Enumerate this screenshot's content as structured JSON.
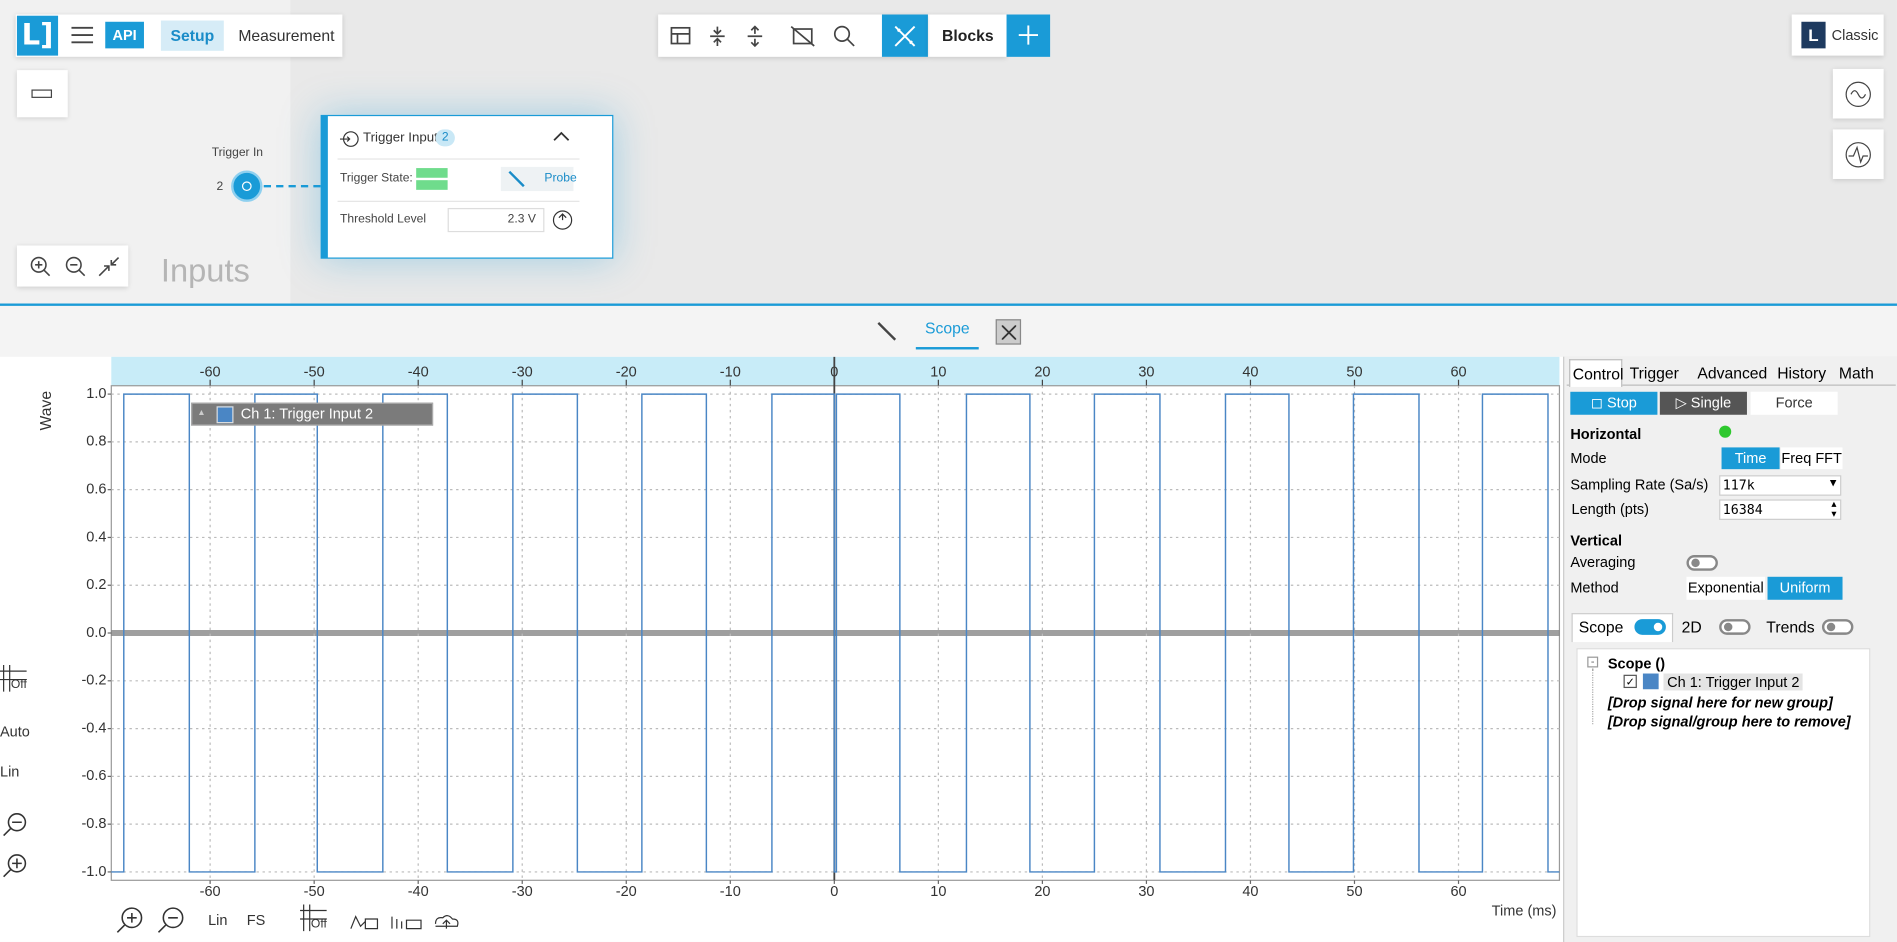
{
  "toolbar": {
    "api": "API",
    "tabs": [
      "Setup",
      "Measurement"
    ],
    "blocks": "Blocks",
    "classic": "Classic"
  },
  "canvas": {
    "section": "Inputs",
    "trigger_in": {
      "label": "Trigger In",
      "number": "2"
    },
    "block": {
      "title": "Trigger Input",
      "badge": "2",
      "trigger_state": "Trigger State:",
      "probe": "Probe",
      "threshold_label": "Threshold Level",
      "threshold_value": "2.3 V"
    }
  },
  "panel_tabs": {
    "scope": "Scope"
  },
  "scope_toolbar": {
    "left": [
      "Off",
      "Auto",
      "Lin"
    ],
    "bottom": [
      "Lin",
      "FS",
      "Off"
    ]
  },
  "chart_data": {
    "type": "line",
    "x_label": "Time (ms)",
    "y_label": "Wave",
    "x": [
      -69.5,
      -68.3,
      -68.3,
      -62,
      -62,
      -55.7,
      -55.7,
      -49.7,
      -49.7,
      -43.4,
      -43.4,
      -37.2,
      -37.2,
      -30.9,
      -30.9,
      -24.7,
      -24.7,
      -18.5,
      -18.5,
      -12.3,
      -12.3,
      -6,
      -6,
      0,
      0,
      0.2,
      0.2,
      6.3,
      6.3,
      12.7,
      12.7,
      18.8,
      18.8,
      25,
      25,
      31.3,
      31.3,
      37.6,
      37.6,
      43.7,
      43.7,
      49.9,
      49.9,
      56.2,
      56.2,
      62.3,
      62.3,
      68.6,
      68.6,
      69.7
    ],
    "series": [
      {
        "name": "Ch 1: Trigger Input 2",
        "color": "#4a86c5",
        "values": [
          -1,
          -1,
          1,
          1,
          -1,
          -1,
          1,
          1,
          -1,
          -1,
          1,
          1,
          -1,
          -1,
          1,
          1,
          -1,
          -1,
          1,
          1,
          -1,
          -1,
          1,
          1,
          -1,
          -1,
          1,
          1,
          -1,
          -1,
          1,
          1,
          -1,
          -1,
          1,
          1,
          -1,
          -1,
          1,
          1,
          -1,
          -1,
          1,
          1,
          -1,
          -1,
          1,
          1,
          -1,
          -1
        ]
      }
    ],
    "xlim": [
      -69.5,
      69.7
    ],
    "xticks": [
      -60,
      -50,
      -40,
      -30,
      -20,
      -10,
      0,
      10,
      20,
      30,
      40,
      50,
      60
    ],
    "ylim": [
      -1.035,
      1.035
    ],
    "yticks": [
      {
        "value": 1,
        "label": "1.0"
      },
      0.8,
      0.6,
      0.4,
      0.2,
      {
        "value": 0,
        "label": "0.0"
      },
      -0.2,
      -0.4,
      -0.6,
      -0.8,
      {
        "value": -1,
        "label": "-1.0"
      }
    ],
    "grid": true
  },
  "control": {
    "tabs": [
      "Control",
      "Trigger",
      "Advanced",
      "History",
      "Math"
    ],
    "buttons": [
      "Stop",
      "Single",
      "Force"
    ],
    "horizontal": "Horizontal",
    "mode": "Mode",
    "mode_options": [
      "Time",
      "Freq FFT"
    ],
    "sampling_rate": "Sampling Rate (Sa/s)",
    "sampling_value": "117k",
    "length": "Length (pts)",
    "length_value": "16384",
    "vertical": "Vertical",
    "averaging": "Averaging",
    "method": "Method",
    "method_options": [
      "Exponential",
      "Uniform"
    ],
    "subtabs": [
      "Scope",
      "2D",
      "Trends"
    ],
    "tree": {
      "root": "Scope ()",
      "drop_new": "[Drop signal here for new group]",
      "drop_remove": "[Drop signal/group here to remove]"
    }
  }
}
